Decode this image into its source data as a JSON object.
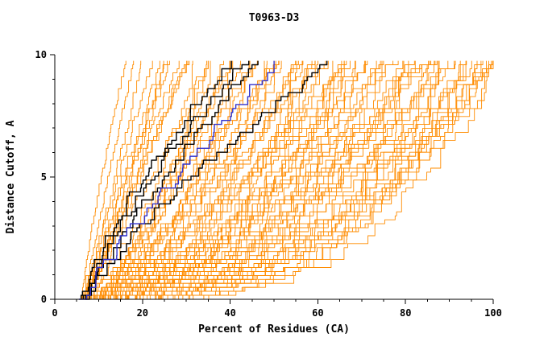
{
  "title": "T0963-D3",
  "xlabel": "Percent of Residues (CA)",
  "ylabel": "Distance Cutoff, A",
  "colors": {
    "background": "#FFFFFF",
    "axis": "#000000",
    "ensemble": "#FF8C00",
    "highlight": "#000000",
    "reference": "#3232CD"
  },
  "chart_data": {
    "type": "line",
    "title": "T0963-D3",
    "xlabel": "Percent of Residues (CA)",
    "ylabel": "Distance Cutoff, A",
    "xlim": [
      0,
      100
    ],
    "ylim": [
      0,
      10
    ],
    "x_tick_labels": [
      0,
      20,
      40,
      60,
      80,
      100
    ],
    "y_tick_labels": [
      0,
      5,
      10
    ],
    "x_minor_step": 5,
    "y_minor_step": 1,
    "grid": "off",
    "legend": "none",
    "curve_y_max": 9.75,
    "series_format": "[percent_at_cutoff0, percent_at_top_cutoff, shape_gamma] per monotone step-curve",
    "ensemble_series": [
      [
        6,
        16,
        1.2
      ],
      [
        6.5,
        18,
        1.1
      ],
      [
        7,
        20,
        1.0
      ],
      [
        6,
        22,
        0.95
      ],
      [
        7,
        24,
        1.05
      ],
      [
        6.5,
        25,
        0.9
      ],
      [
        7.5,
        26,
        1.0
      ],
      [
        6,
        28,
        0.9
      ],
      [
        7,
        30,
        0.95
      ],
      [
        8,
        30,
        1.1
      ],
      [
        6.5,
        32,
        0.6
      ],
      [
        7,
        34,
        0.5
      ],
      [
        7.5,
        35,
        0.65
      ],
      [
        6,
        36,
        0.55
      ],
      [
        8,
        38,
        0.6
      ],
      [
        7,
        40,
        0.5
      ],
      [
        6.5,
        40,
        0.7
      ],
      [
        7.5,
        42,
        0.55
      ],
      [
        8,
        44,
        0.6
      ],
      [
        6,
        45,
        0.5
      ],
      [
        7,
        46,
        0.65
      ],
      [
        7.5,
        48,
        0.55
      ],
      [
        8,
        50,
        0.5
      ],
      [
        6.5,
        50,
        0.7
      ],
      [
        7,
        52,
        0.6
      ],
      [
        8,
        54,
        0.5
      ],
      [
        6,
        55,
        0.55
      ],
      [
        7.5,
        56,
        0.6
      ],
      [
        7,
        58,
        0.5
      ],
      [
        8,
        60,
        0.55
      ],
      [
        6.5,
        60,
        0.45
      ],
      [
        7,
        62,
        0.6
      ],
      [
        7.5,
        64,
        0.5
      ],
      [
        8,
        65,
        0.45
      ],
      [
        6,
        66,
        0.55
      ],
      [
        7,
        68,
        0.5
      ],
      [
        7.5,
        70,
        0.45
      ],
      [
        8,
        70,
        0.6
      ],
      [
        6.5,
        72,
        0.5
      ],
      [
        7,
        74,
        0.45
      ],
      [
        7.5,
        75,
        0.55
      ],
      [
        8,
        76,
        0.5
      ],
      [
        6,
        78,
        0.45
      ],
      [
        7,
        80,
        0.5
      ],
      [
        7.5,
        80,
        0.4
      ],
      [
        8,
        82,
        0.45
      ],
      [
        6.5,
        84,
        0.5
      ],
      [
        7,
        85,
        0.4
      ],
      [
        7.5,
        86,
        0.45
      ],
      [
        8,
        88,
        0.5
      ],
      [
        6,
        90,
        0.4
      ],
      [
        7,
        90,
        0.45
      ],
      [
        7.5,
        92,
        0.4
      ],
      [
        8,
        93,
        0.45
      ],
      [
        6.5,
        94,
        0.4
      ],
      [
        7,
        95,
        0.35
      ],
      [
        7.5,
        96,
        0.4
      ],
      [
        8,
        97,
        0.35
      ],
      [
        6,
        98,
        0.4
      ],
      [
        7,
        100,
        0.35
      ],
      [
        7.5,
        100,
        0.45
      ],
      [
        8,
        100,
        0.3
      ],
      [
        5.5,
        35,
        0.9
      ],
      [
        6,
        45,
        0.85
      ],
      [
        6.5,
        55,
        0.8
      ],
      [
        7,
        65,
        0.75
      ],
      [
        7.5,
        75,
        0.7
      ],
      [
        8,
        85,
        0.65
      ],
      [
        5.5,
        95,
        0.6
      ],
      [
        6,
        50,
        0.9
      ],
      [
        6.5,
        60,
        0.85
      ],
      [
        7,
        70,
        0.8
      ],
      [
        7.5,
        85,
        0.75
      ],
      [
        8,
        90,
        0.7
      ],
      [
        5.5,
        25,
        0.9
      ],
      [
        6,
        30,
        0.95
      ],
      [
        6.5,
        40,
        0.9
      ],
      [
        7,
        55,
        0.35
      ],
      [
        7.5,
        65,
        0.3
      ],
      [
        8,
        75,
        0.35
      ],
      [
        6,
        85,
        0.3
      ],
      [
        7,
        95,
        0.3
      ],
      [
        6.5,
        88,
        0.35
      ],
      [
        7.5,
        92,
        0.3
      ],
      [
        8,
        98,
        0.4
      ],
      [
        6,
        70,
        0.35
      ],
      [
        7,
        78,
        0.3
      ],
      [
        6.5,
        66,
        0.4
      ],
      [
        7.5,
        58,
        0.35
      ],
      [
        8,
        48,
        0.4
      ]
    ],
    "highlight_series": [
      [
        6,
        40,
        1.3
      ],
      [
        6.5,
        43,
        1.25
      ],
      [
        7,
        46,
        1.2
      ],
      [
        7,
        63,
        1.3
      ]
    ],
    "reference_series": [
      [
        5.5,
        51,
        1.1
      ]
    ]
  }
}
